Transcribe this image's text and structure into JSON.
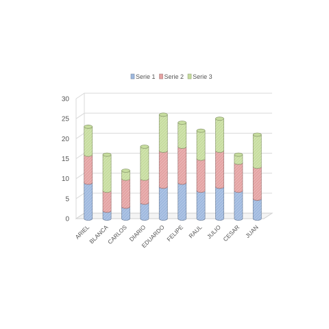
{
  "chart_data": {
    "type": "bar",
    "stacked": true,
    "style": "3d-cylinder",
    "categories": [
      "ARIEL",
      "BLANCA",
      "CARLOS",
      "DIARIO",
      "EDUARDO",
      "FELIPE",
      "RAUL",
      "JULIO",
      "CESAR",
      "JUAN"
    ],
    "series": [
      {
        "name": "Serie 1",
        "color": "#9fb9df",
        "values": [
          9,
          2,
          3,
          4,
          8,
          9,
          7,
          8,
          7,
          5
        ]
      },
      {
        "name": "Serie 2",
        "color": "#e4a3a3",
        "values": [
          7,
          5,
          7,
          6,
          9,
          9,
          8,
          9,
          7,
          8
        ]
      },
      {
        "name": "Serie 3",
        "color": "#c7dd9f",
        "values": [
          7,
          9,
          2,
          8,
          9,
          6,
          7,
          8,
          2,
          8
        ]
      }
    ],
    "yticks": [
      0,
      5,
      10,
      15,
      20,
      25,
      30
    ],
    "ylim": [
      0,
      30
    ],
    "grid": true,
    "legend_position": "top"
  }
}
